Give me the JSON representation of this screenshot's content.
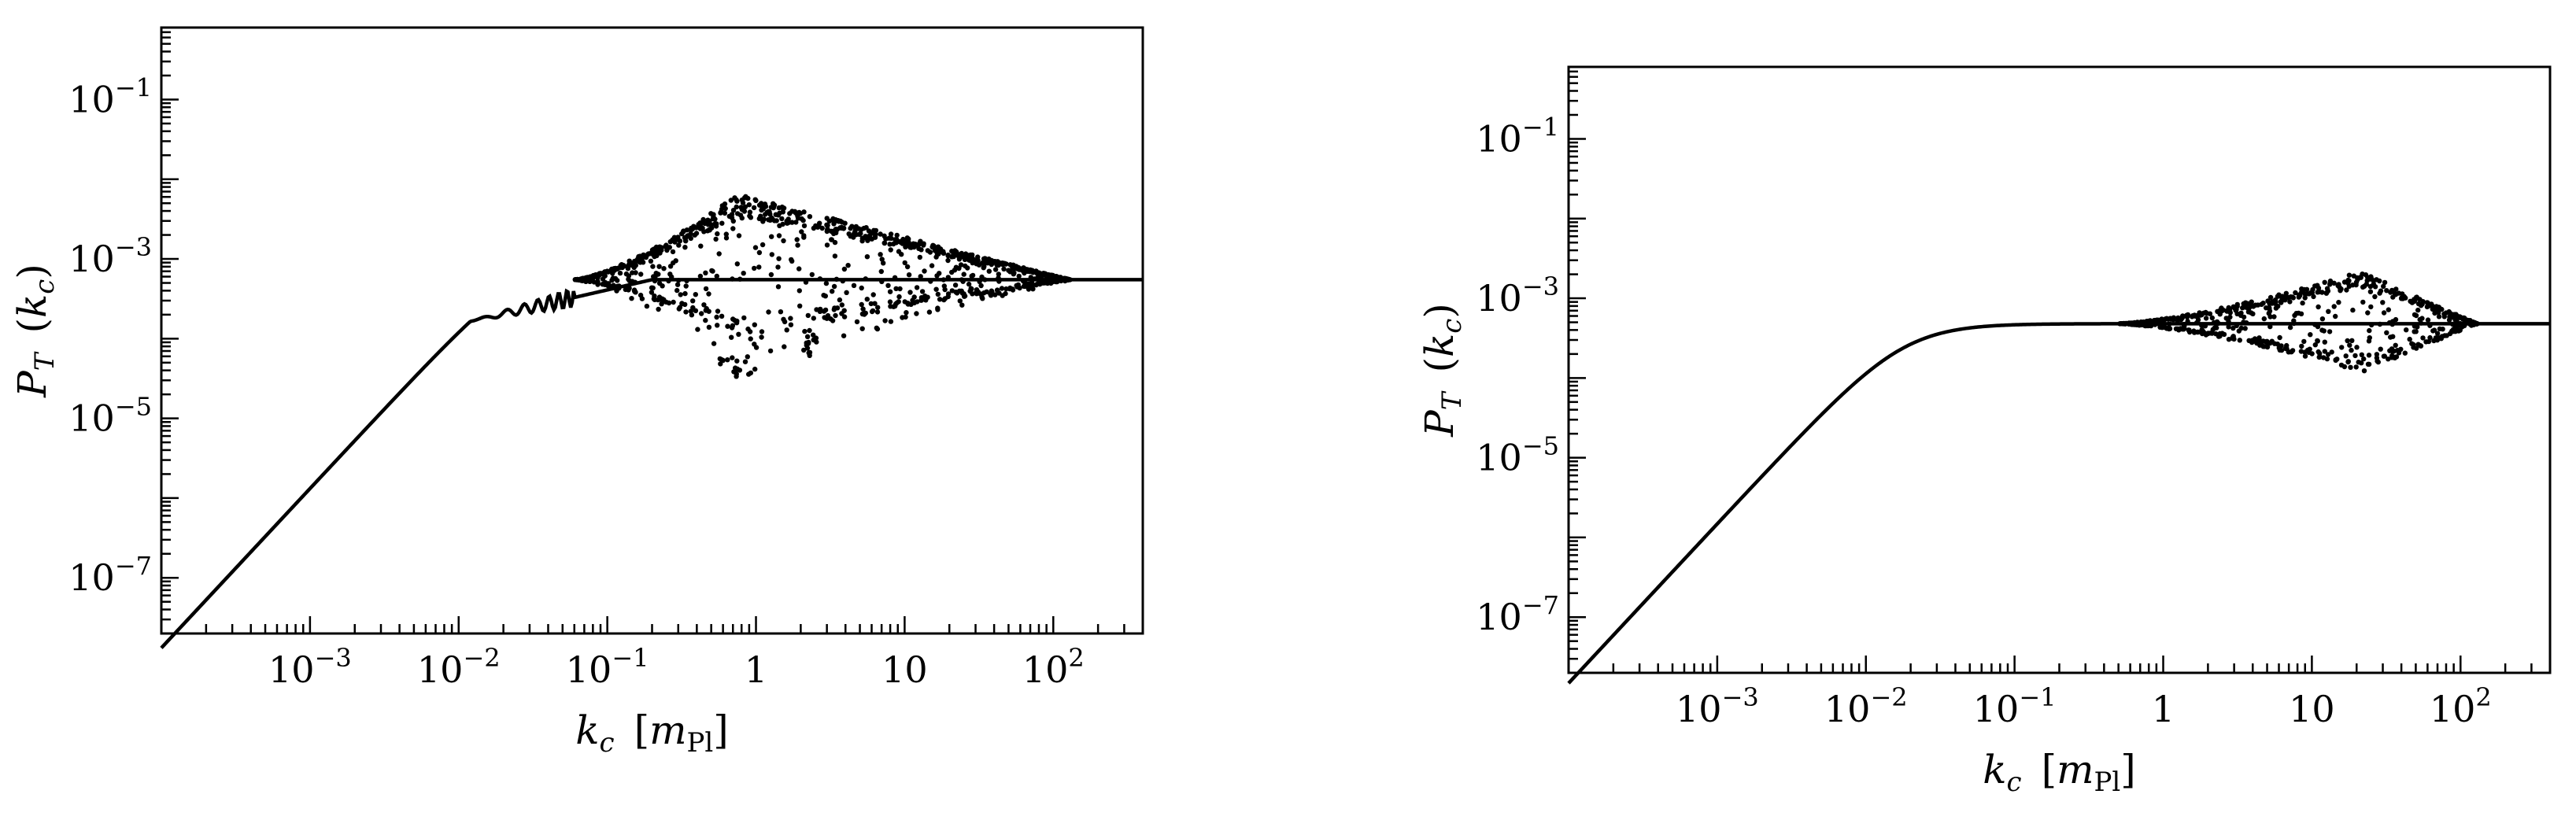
{
  "chart_data": [
    {
      "id": "left",
      "type": "scatter",
      "xscale": "log",
      "yscale": "log",
      "xlim": [
        0.0001,
        400
      ],
      "ylim": [
        2e-08,
        0.8
      ],
      "xlabel": "k_c [m_Pl]",
      "ylabel": "P_T (k_c)",
      "xlabel_parts": {
        "var": "k",
        "sub": "c",
        "unit": "m",
        "unit_sub": "Pl"
      },
      "ylabel_parts": {
        "var": "P",
        "sub": "T",
        "arg": "k",
        "arg_sub": "c"
      },
      "xticks": [
        {
          "value": 0.001,
          "base": "10",
          "exp": "-3"
        },
        {
          "value": 0.01,
          "base": "10",
          "exp": "-2"
        },
        {
          "value": 0.1,
          "base": "10",
          "exp": "-1"
        },
        {
          "value": 1,
          "base": "1",
          "exp": ""
        },
        {
          "value": 10,
          "base": "10",
          "exp": ""
        },
        {
          "value": 100,
          "base": "10",
          "exp": "2"
        }
      ],
      "yticks": [
        {
          "value": 1e-07,
          "base": "10",
          "exp": "-7"
        },
        {
          "value": 1e-05,
          "base": "10",
          "exp": "-5"
        },
        {
          "value": 0.001,
          "base": "10",
          "exp": "-3"
        },
        {
          "value": 0.1,
          "base": "10",
          "exp": "-1"
        }
      ],
      "grid": false,
      "legend": "none",
      "curve": {
        "k_peak": 0.012,
        "plateau": 0.000165,
        "slope": 2.0,
        "k_end": 400
      },
      "oscillation_region": {
        "k_start": 0.012,
        "k_end": 0.06,
        "amplitude_dex": 0.12
      },
      "scatter_region": {
        "k_start": 0.06,
        "k_end": 130,
        "k_center": 0.75,
        "level": 0.00055,
        "upper_envelope_peak": 0.0065,
        "lower_envelope_min": 3e-05,
        "n_points": 1100
      }
    },
    {
      "id": "right",
      "type": "scatter",
      "xscale": "log",
      "yscale": "log",
      "xlim": [
        0.0001,
        400
      ],
      "ylim": [
        2e-08,
        0.8
      ],
      "xlabel": "k_c [m_Pl]",
      "ylabel": "P_T (k_c)",
      "xlabel_parts": {
        "var": "k",
        "sub": "c",
        "unit": "m",
        "unit_sub": "Pl"
      },
      "ylabel_parts": {
        "var": "P",
        "sub": "T",
        "arg": "k",
        "arg_sub": "c"
      },
      "xticks": [
        {
          "value": 0.001,
          "base": "10",
          "exp": "-3"
        },
        {
          "value": 0.01,
          "base": "10",
          "exp": "-2"
        },
        {
          "value": 0.1,
          "base": "10",
          "exp": "-1"
        },
        {
          "value": 1,
          "base": "1",
          "exp": ""
        },
        {
          "value": 10,
          "base": "10",
          "exp": ""
        },
        {
          "value": 100,
          "base": "10",
          "exp": "2"
        }
      ],
      "yticks": [
        {
          "value": 1e-07,
          "base": "10",
          "exp": "-7"
        },
        {
          "value": 1e-05,
          "base": "10",
          "exp": "-5"
        },
        {
          "value": 0.001,
          "base": "10",
          "exp": "-3"
        },
        {
          "value": 0.1,
          "base": "10",
          "exp": "-1"
        }
      ],
      "grid": false,
      "legend": "none",
      "curve": {
        "k_knee": 0.018,
        "plateau": 0.00048,
        "slope": 2.0,
        "k_end": 400
      },
      "scatter_region": {
        "k_start": 0.5,
        "k_end": 130,
        "k_center": 22,
        "level": 0.00048,
        "upper_envelope_peak": 0.0022,
        "lower_envelope_min": 0.00012,
        "n_points": 650
      }
    }
  ]
}
